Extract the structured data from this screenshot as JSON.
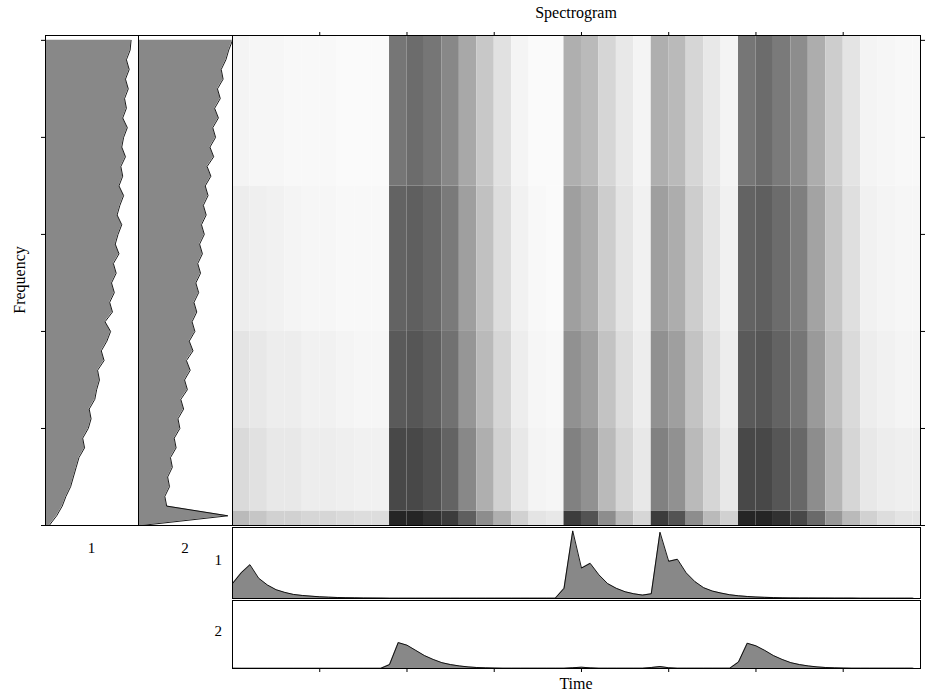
{
  "chart_data": [
    {
      "type": "heatmap",
      "title": "Spectrogram",
      "xlabel": "Time",
      "ylabel": "Frequency",
      "time_bins": [
        0,
        0.2,
        0.4,
        0.6,
        0.8,
        1,
        1.2,
        1.4,
        1.6,
        1.8,
        2,
        2.2,
        2.4,
        2.6,
        2.8,
        3,
        3.2,
        3.4,
        3.6,
        3.8,
        4,
        4.2,
        4.4,
        4.6,
        4.8,
        5,
        5.2,
        5.4,
        5.6,
        5.8,
        6,
        6.2,
        6.4,
        6.6,
        6.8,
        7,
        7.2,
        7.4,
        7.6,
        7.8,
        8
      ],
      "frequency_bins": [
        0,
        0.15,
        1,
        2,
        3.5,
        5.05
      ],
      "cells": [
        [
          0.3,
          0.25,
          0.2,
          0.2,
          0.18,
          0.18,
          0.16,
          0.15,
          0.15,
          0.95,
          0.95,
          0.9,
          0.85,
          0.7,
          0.5,
          0.35,
          0.2,
          0.12,
          0.1,
          0.85,
          0.75,
          0.5,
          0.3,
          0.18,
          0.85,
          0.75,
          0.5,
          0.3,
          0.2,
          0.95,
          0.95,
          0.9,
          0.8,
          0.65,
          0.45,
          0.3,
          0.2,
          0.15,
          0.12,
          0.12
        ],
        [
          0.16,
          0.13,
          0.1,
          0.1,
          0.08,
          0.08,
          0.07,
          0.06,
          0.06,
          0.8,
          0.8,
          0.76,
          0.68,
          0.52,
          0.35,
          0.2,
          0.1,
          0.05,
          0.04,
          0.55,
          0.48,
          0.3,
          0.18,
          0.1,
          0.55,
          0.48,
          0.3,
          0.18,
          0.1,
          0.8,
          0.8,
          0.74,
          0.66,
          0.5,
          0.32,
          0.18,
          0.1,
          0.08,
          0.07,
          0.07
        ],
        [
          0.12,
          0.1,
          0.08,
          0.08,
          0.06,
          0.06,
          0.05,
          0.04,
          0.04,
          0.72,
          0.74,
          0.7,
          0.62,
          0.46,
          0.3,
          0.18,
          0.08,
          0.04,
          0.03,
          0.48,
          0.42,
          0.26,
          0.15,
          0.08,
          0.48,
          0.42,
          0.26,
          0.15,
          0.08,
          0.72,
          0.74,
          0.68,
          0.6,
          0.44,
          0.28,
          0.16,
          0.08,
          0.06,
          0.05,
          0.05
        ],
        [
          0.08,
          0.07,
          0.06,
          0.05,
          0.04,
          0.04,
          0.03,
          0.03,
          0.03,
          0.68,
          0.7,
          0.66,
          0.58,
          0.42,
          0.27,
          0.15,
          0.06,
          0.03,
          0.02,
          0.42,
          0.36,
          0.22,
          0.12,
          0.06,
          0.42,
          0.36,
          0.22,
          0.12,
          0.06,
          0.68,
          0.7,
          0.64,
          0.56,
          0.4,
          0.25,
          0.14,
          0.06,
          0.05,
          0.04,
          0.04
        ],
        [
          0.05,
          0.04,
          0.04,
          0.03,
          0.03,
          0.03,
          0.02,
          0.02,
          0.02,
          0.6,
          0.64,
          0.6,
          0.52,
          0.38,
          0.24,
          0.13,
          0.05,
          0.02,
          0.02,
          0.35,
          0.3,
          0.18,
          0.1,
          0.05,
          0.35,
          0.3,
          0.18,
          0.1,
          0.05,
          0.6,
          0.64,
          0.58,
          0.5,
          0.36,
          0.22,
          0.12,
          0.05,
          0.04,
          0.03,
          0.03
        ]
      ],
      "cell_range": [
        0,
        1
      ],
      "colors": [
        "#ffffff",
        "#1a1a1a"
      ],
      "xlim": [
        0,
        7.886
      ],
      "ylim": [
        0,
        5.05
      ],
      "xticks": [
        1,
        2,
        3,
        4,
        5,
        6,
        7
      ],
      "yticks": [
        0,
        1,
        2,
        3,
        4,
        5
      ],
      "tick_labels": false
    },
    {
      "type": "area",
      "title": "1",
      "orientation": "horizontal",
      "color": "#888888",
      "y": [
        0,
        0.1,
        0.2,
        0.3,
        0.4,
        0.5,
        0.6,
        0.7,
        0.8,
        0.9,
        1,
        1.1,
        1.2,
        1.3,
        1.4,
        1.5,
        1.6,
        1.7,
        1.8,
        1.9,
        2,
        2.1,
        2.2,
        2.3,
        2.4,
        2.5,
        2.6,
        2.7,
        2.8,
        2.9,
        3,
        3.1,
        3.2,
        3.3,
        3.4,
        3.5,
        3.6,
        3.7,
        3.8,
        3.9,
        4,
        4.1,
        4.2,
        4.3,
        4.4,
        4.5,
        4.6,
        4.7,
        4.8,
        4.9,
        5
      ],
      "values": [
        0.04,
        0.12,
        0.18,
        0.22,
        0.27,
        0.3,
        0.33,
        0.36,
        0.42,
        0.4,
        0.46,
        0.49,
        0.47,
        0.53,
        0.55,
        0.58,
        0.56,
        0.63,
        0.6,
        0.66,
        0.7,
        0.64,
        0.72,
        0.69,
        0.74,
        0.71,
        0.76,
        0.73,
        0.79,
        0.75,
        0.78,
        0.82,
        0.77,
        0.8,
        0.84,
        0.79,
        0.83,
        0.81,
        0.86,
        0.82,
        0.84,
        0.88,
        0.83,
        0.87,
        0.85,
        0.89,
        0.86,
        0.9,
        0.87,
        0.91,
        0.92
      ],
      "xlim": [
        0,
        1
      ],
      "ylim": [
        0,
        5.05
      ],
      "yticks": [
        0,
        1,
        2,
        3,
        4,
        5
      ],
      "tick_labels": false
    },
    {
      "type": "area",
      "title": "2",
      "orientation": "horizontal",
      "color": "#888888",
      "y": [
        0,
        0.1,
        0.2,
        0.3,
        0.4,
        0.5,
        0.6,
        0.7,
        0.8,
        0.9,
        1,
        1.1,
        1.2,
        1.3,
        1.4,
        1.5,
        1.6,
        1.7,
        1.8,
        1.9,
        2,
        2.1,
        2.2,
        2.3,
        2.4,
        2.5,
        2.6,
        2.7,
        2.8,
        2.9,
        3,
        3.1,
        3.2,
        3.3,
        3.4,
        3.5,
        3.6,
        3.7,
        3.8,
        3.9,
        4,
        4.1,
        4.2,
        4.3,
        4.4,
        4.5,
        4.6,
        4.7,
        4.8,
        4.9,
        5
      ],
      "values": [
        0.03,
        0.95,
        0.3,
        0.28,
        0.33,
        0.31,
        0.36,
        0.34,
        0.4,
        0.38,
        0.44,
        0.42,
        0.48,
        0.45,
        0.52,
        0.49,
        0.55,
        0.51,
        0.58,
        0.54,
        0.6,
        0.57,
        0.62,
        0.59,
        0.64,
        0.61,
        0.66,
        0.63,
        0.68,
        0.65,
        0.7,
        0.67,
        0.72,
        0.69,
        0.74,
        0.71,
        0.77,
        0.73,
        0.8,
        0.76,
        0.82,
        0.79,
        0.85,
        0.81,
        0.87,
        0.84,
        0.9,
        0.88,
        0.93,
        0.96,
        1.0
      ],
      "xlim": [
        0,
        1
      ],
      "ylim": [
        0,
        5.05
      ],
      "tick_labels": false
    },
    {
      "type": "area",
      "title": "1",
      "color": "#888888",
      "x": [
        0,
        0.1,
        0.2,
        0.3,
        0.4,
        0.5,
        0.6,
        0.7,
        0.8,
        0.9,
        1,
        1.1,
        1.2,
        1.3,
        1.4,
        1.5,
        1.6,
        1.7,
        1.8,
        1.9,
        2,
        2.1,
        2.2,
        2.3,
        2.4,
        2.5,
        2.6,
        2.7,
        2.8,
        2.9,
        3,
        3.1,
        3.2,
        3.3,
        3.4,
        3.5,
        3.6,
        3.7,
        3.8,
        3.9,
        4,
        4.1,
        4.2,
        4.3,
        4.4,
        4.5,
        4.6,
        4.7,
        4.8,
        4.9,
        5,
        5.1,
        5.2,
        5.3,
        5.4,
        5.5,
        5.6,
        5.7,
        5.8,
        5.9,
        6,
        6.1,
        6.2,
        6.3,
        6.4,
        6.5,
        6.6,
        6.7,
        6.8,
        6.9,
        7,
        7.1,
        7.2,
        7.3,
        7.4,
        7.5,
        7.6,
        7.7,
        7.8
      ],
      "values": [
        0.22,
        0.38,
        0.5,
        0.3,
        0.2,
        0.13,
        0.09,
        0.06,
        0.045,
        0.035,
        0.025,
        0.02,
        0.015,
        0.012,
        0.01,
        0.008,
        0.007,
        0.006,
        0.005,
        0.005,
        0.005,
        0.005,
        0.005,
        0.005,
        0.005,
        0.005,
        0.005,
        0.005,
        0.005,
        0.005,
        0.005,
        0.005,
        0.005,
        0.005,
        0.005,
        0.005,
        0.005,
        0.005,
        0.15,
        1.0,
        0.45,
        0.52,
        0.35,
        0.22,
        0.15,
        0.1,
        0.07,
        0.05,
        0.07,
        0.98,
        0.55,
        0.58,
        0.38,
        0.25,
        0.16,
        0.11,
        0.08,
        0.055,
        0.04,
        0.03,
        0.022,
        0.017,
        0.013,
        0.01,
        0.009,
        0.008,
        0.008,
        0.007,
        0.007,
        0.006,
        0.006,
        0.006,
        0.005,
        0.005,
        0.005,
        0.005,
        0.005,
        0.005,
        0.005
      ],
      "xlim": [
        0,
        7.886
      ],
      "ylim": [
        0,
        1.05
      ],
      "tick_labels": false
    },
    {
      "type": "area",
      "title": "2",
      "color": "#888888",
      "x": [
        0,
        0.1,
        0.2,
        0.3,
        0.4,
        0.5,
        0.6,
        0.7,
        0.8,
        0.9,
        1,
        1.1,
        1.2,
        1.3,
        1.4,
        1.5,
        1.6,
        1.7,
        1.8,
        1.9,
        2,
        2.1,
        2.2,
        2.3,
        2.4,
        2.5,
        2.6,
        2.7,
        2.8,
        2.9,
        3,
        3.1,
        3.2,
        3.3,
        3.4,
        3.5,
        3.6,
        3.7,
        3.8,
        3.9,
        4,
        4.1,
        4.2,
        4.3,
        4.4,
        4.5,
        4.6,
        4.7,
        4.8,
        4.9,
        5,
        5.1,
        5.2,
        5.3,
        5.4,
        5.5,
        5.6,
        5.7,
        5.8,
        5.9,
        6,
        6.1,
        6.2,
        6.3,
        6.4,
        6.5,
        6.6,
        6.7,
        6.8,
        6.9,
        7,
        7.1,
        7.2,
        7.3,
        7.4,
        7.5,
        7.6,
        7.7,
        7.8
      ],
      "values": [
        0.004,
        0.003,
        0.003,
        0.003,
        0.003,
        0.003,
        0.003,
        0.003,
        0.003,
        0.003,
        0.003,
        0.003,
        0.003,
        0.003,
        0.003,
        0.003,
        0.003,
        0.003,
        0.06,
        0.4,
        0.36,
        0.28,
        0.2,
        0.14,
        0.09,
        0.06,
        0.04,
        0.025,
        0.015,
        0.01,
        0.007,
        0.005,
        0.005,
        0.005,
        0.005,
        0.005,
        0.005,
        0.005,
        0.005,
        0.012,
        0.02,
        0.01,
        0.005,
        0.005,
        0.005,
        0.005,
        0.005,
        0.005,
        0.015,
        0.03,
        0.012,
        0.005,
        0.005,
        0.005,
        0.005,
        0.005,
        0.005,
        0.005,
        0.1,
        0.39,
        0.35,
        0.28,
        0.2,
        0.14,
        0.09,
        0.06,
        0.04,
        0.025,
        0.015,
        0.01,
        0.007,
        0.005,
        0.005,
        0.005,
        0.005,
        0.005,
        0.005,
        0.005,
        0.005
      ],
      "xlim": [
        0,
        7.886
      ],
      "ylim": [
        0,
        1.05
      ],
      "xticks": [
        1,
        2,
        3,
        4,
        5,
        6,
        7
      ],
      "tick_labels": false
    }
  ]
}
